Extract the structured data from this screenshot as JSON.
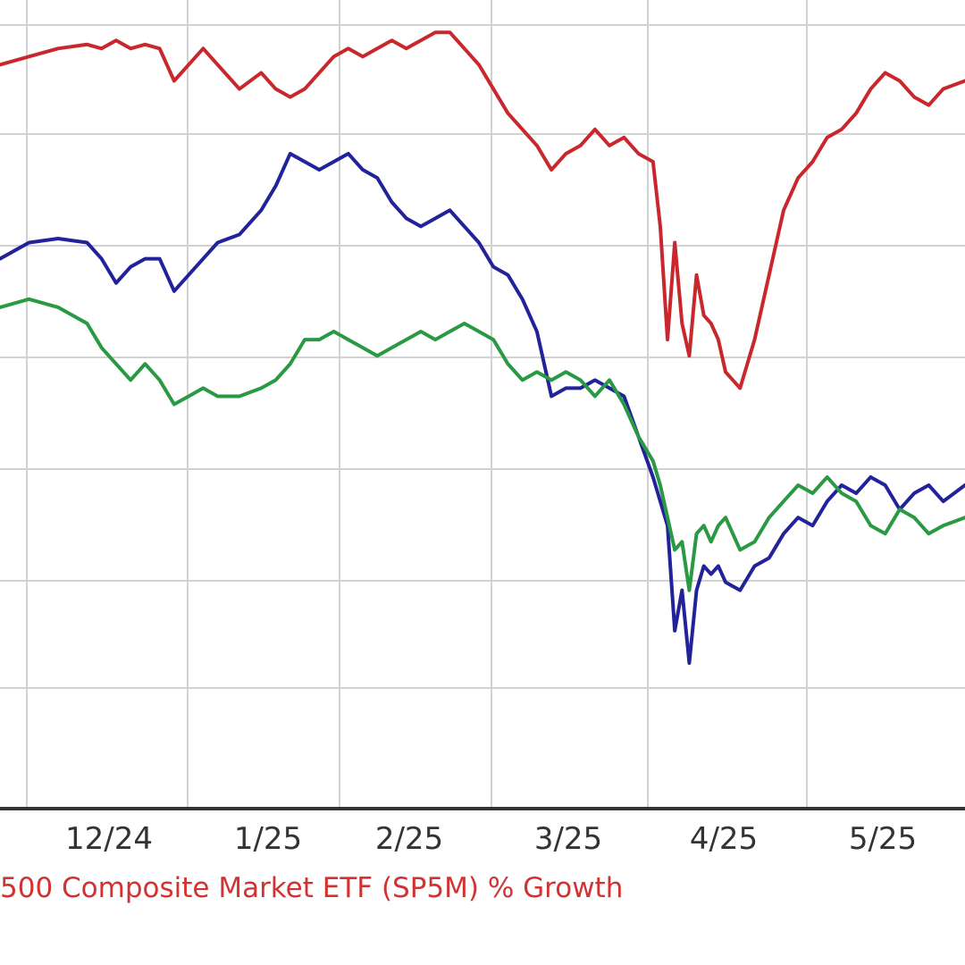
{
  "caption": "500 Composite Market ETF (SP5M) % Growth",
  "chart_data": {
    "type": "line",
    "x_tick_labels": [
      "12/24",
      "1/25",
      "2/25",
      "3/25",
      "4/25",
      "5/25"
    ],
    "grid": true,
    "ylim": [
      0,
      100
    ],
    "series": [
      {
        "color": "#c8282d",
        "points": [
          [
            0.0,
            92
          ],
          [
            4,
            93
          ],
          [
            8,
            94
          ],
          [
            12,
            94.5
          ],
          [
            14,
            94
          ],
          [
            16,
            95
          ],
          [
            18,
            94
          ],
          [
            20,
            94.5
          ],
          [
            22,
            94
          ],
          [
            24,
            90
          ],
          [
            26,
            92
          ],
          [
            28,
            94
          ],
          [
            30,
            92
          ],
          [
            33,
            89
          ],
          [
            36,
            91
          ],
          [
            38,
            89
          ],
          [
            40,
            88
          ],
          [
            42,
            89
          ],
          [
            44,
            91
          ],
          [
            46,
            93
          ],
          [
            48,
            94
          ],
          [
            50,
            93
          ],
          [
            52,
            94
          ],
          [
            54,
            95
          ],
          [
            56,
            94
          ],
          [
            58,
            95
          ],
          [
            60,
            96
          ],
          [
            62,
            96
          ],
          [
            64,
            94
          ],
          [
            66,
            92
          ],
          [
            68,
            89
          ],
          [
            70,
            86
          ],
          [
            72,
            84
          ],
          [
            74,
            82
          ],
          [
            76,
            79
          ],
          [
            78,
            81
          ],
          [
            80,
            82
          ],
          [
            82,
            84
          ],
          [
            84,
            82
          ],
          [
            86,
            83
          ],
          [
            88,
            81
          ],
          [
            90,
            80
          ],
          [
            91,
            72
          ],
          [
            92,
            58
          ],
          [
            93,
            70
          ],
          [
            94,
            60
          ],
          [
            95,
            56
          ],
          [
            96,
            66
          ],
          [
            97,
            61
          ],
          [
            98,
            60
          ],
          [
            99,
            58
          ],
          [
            100,
            54
          ],
          [
            102,
            52
          ],
          [
            104,
            58
          ],
          [
            106,
            66
          ],
          [
            108,
            74
          ],
          [
            110,
            78
          ],
          [
            112,
            80
          ],
          [
            114,
            83
          ],
          [
            116,
            84
          ],
          [
            118,
            86
          ],
          [
            120,
            89
          ],
          [
            122,
            91
          ],
          [
            124,
            90
          ],
          [
            126,
            88
          ],
          [
            128,
            87
          ],
          [
            130,
            89
          ],
          [
            133,
            90
          ]
        ]
      },
      {
        "color": "#22229a",
        "points": [
          [
            0.0,
            68
          ],
          [
            4,
            70
          ],
          [
            8,
            70.5
          ],
          [
            12,
            70
          ],
          [
            14,
            68
          ],
          [
            16,
            65
          ],
          [
            18,
            67
          ],
          [
            20,
            68
          ],
          [
            22,
            68
          ],
          [
            24,
            64
          ],
          [
            26,
            66
          ],
          [
            28,
            68
          ],
          [
            30,
            70
          ],
          [
            33,
            71
          ],
          [
            36,
            74
          ],
          [
            38,
            77
          ],
          [
            40,
            81
          ],
          [
            42,
            80
          ],
          [
            44,
            79
          ],
          [
            46,
            80
          ],
          [
            48,
            81
          ],
          [
            50,
            79
          ],
          [
            52,
            78
          ],
          [
            54,
            75
          ],
          [
            56,
            73
          ],
          [
            58,
            72
          ],
          [
            60,
            73
          ],
          [
            62,
            74
          ],
          [
            64,
            72
          ],
          [
            66,
            70
          ],
          [
            68,
            67
          ],
          [
            70,
            66
          ],
          [
            72,
            63
          ],
          [
            74,
            59
          ],
          [
            76,
            51
          ],
          [
            78,
            52
          ],
          [
            80,
            52
          ],
          [
            82,
            53
          ],
          [
            84,
            52
          ],
          [
            86,
            51
          ],
          [
            88,
            46
          ],
          [
            90,
            41
          ],
          [
            91,
            38
          ],
          [
            92,
            35
          ],
          [
            93,
            22
          ],
          [
            94,
            27
          ],
          [
            95,
            18
          ],
          [
            96,
            27
          ],
          [
            97,
            30
          ],
          [
            98,
            29
          ],
          [
            99,
            30
          ],
          [
            100,
            28
          ],
          [
            102,
            27
          ],
          [
            104,
            30
          ],
          [
            106,
            31
          ],
          [
            108,
            34
          ],
          [
            110,
            36
          ],
          [
            112,
            35
          ],
          [
            114,
            38
          ],
          [
            116,
            40
          ],
          [
            118,
            39
          ],
          [
            120,
            41
          ],
          [
            122,
            40
          ],
          [
            124,
            37
          ],
          [
            126,
            39
          ],
          [
            128,
            40
          ],
          [
            130,
            38
          ],
          [
            133,
            40
          ]
        ]
      },
      {
        "color": "#2a9944",
        "points": [
          [
            0.0,
            62
          ],
          [
            4,
            63
          ],
          [
            8,
            62
          ],
          [
            12,
            60
          ],
          [
            14,
            57
          ],
          [
            16,
            55
          ],
          [
            18,
            53
          ],
          [
            20,
            55
          ],
          [
            22,
            53
          ],
          [
            24,
            50
          ],
          [
            26,
            51
          ],
          [
            28,
            52
          ],
          [
            30,
            51
          ],
          [
            33,
            51
          ],
          [
            36,
            52
          ],
          [
            38,
            53
          ],
          [
            40,
            55
          ],
          [
            42,
            58
          ],
          [
            44,
            58
          ],
          [
            46,
            59
          ],
          [
            48,
            58
          ],
          [
            50,
            57
          ],
          [
            52,
            56
          ],
          [
            54,
            57
          ],
          [
            56,
            58
          ],
          [
            58,
            59
          ],
          [
            60,
            58
          ],
          [
            62,
            59
          ],
          [
            64,
            60
          ],
          [
            66,
            59
          ],
          [
            68,
            58
          ],
          [
            70,
            55
          ],
          [
            72,
            53
          ],
          [
            74,
            54
          ],
          [
            76,
            53
          ],
          [
            78,
            54
          ],
          [
            80,
            53
          ],
          [
            82,
            51
          ],
          [
            84,
            53
          ],
          [
            86,
            50
          ],
          [
            88,
            46
          ],
          [
            90,
            43
          ],
          [
            91,
            40
          ],
          [
            92,
            36
          ],
          [
            93,
            32
          ],
          [
            94,
            33
          ],
          [
            95,
            27
          ],
          [
            96,
            34
          ],
          [
            97,
            35
          ],
          [
            98,
            33
          ],
          [
            99,
            35
          ],
          [
            100,
            36
          ],
          [
            102,
            32
          ],
          [
            104,
            33
          ],
          [
            106,
            36
          ],
          [
            108,
            38
          ],
          [
            110,
            40
          ],
          [
            112,
            39
          ],
          [
            114,
            41
          ],
          [
            116,
            39
          ],
          [
            118,
            38
          ],
          [
            120,
            35
          ],
          [
            122,
            34
          ],
          [
            124,
            37
          ],
          [
            126,
            36
          ],
          [
            128,
            34
          ],
          [
            130,
            35
          ],
          [
            133,
            36
          ]
        ]
      }
    ]
  }
}
